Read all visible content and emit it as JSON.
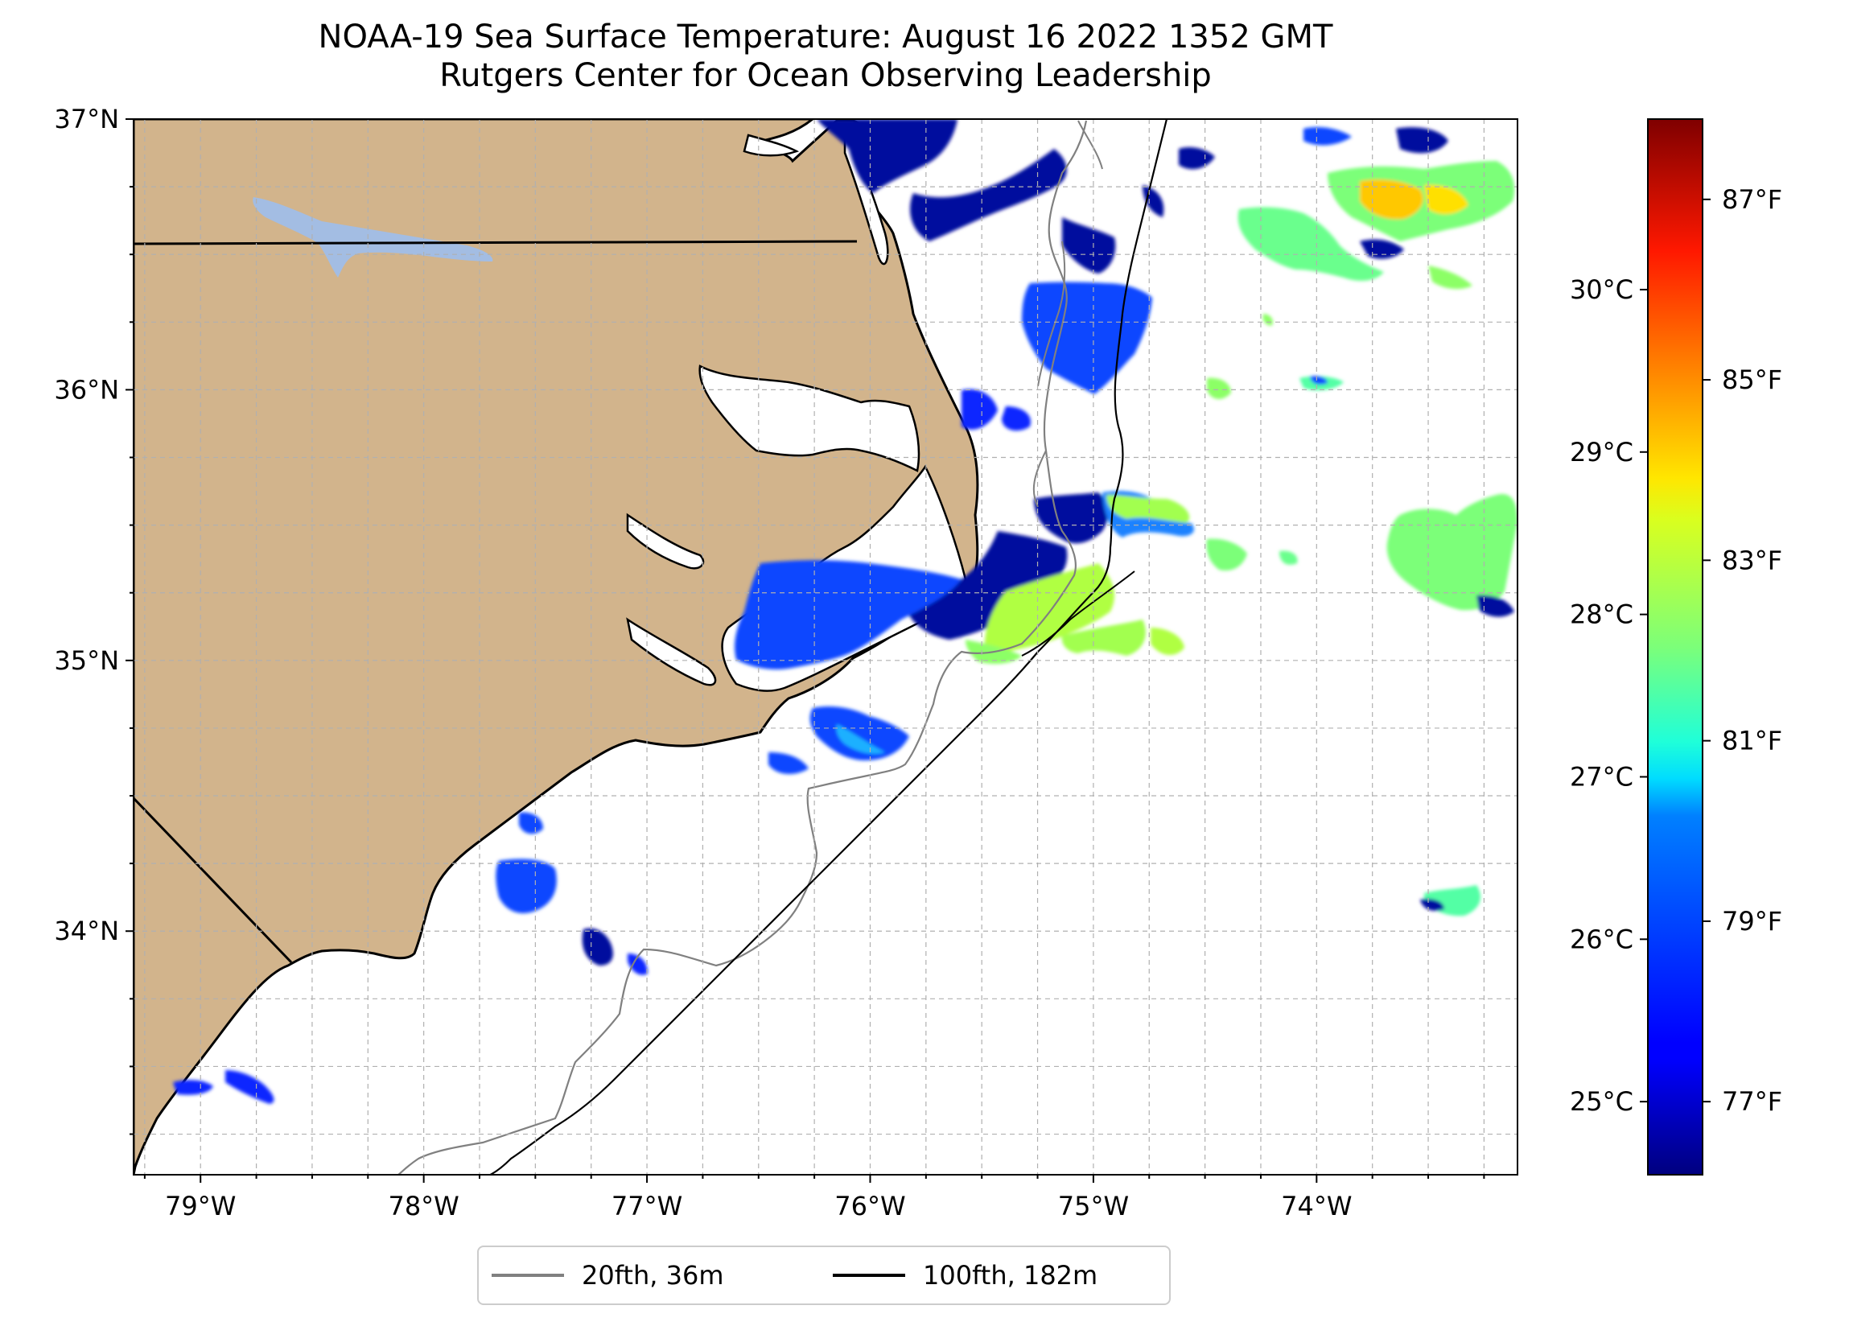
{
  "title": {
    "line1": "NOAA-19 Sea Surface Temperature: August 16 2022 1352 GMT",
    "line2": "Rutgers Center for Ocean Observing Leadership"
  },
  "map": {
    "lon_range": [
      -79.3,
      -73.1
    ],
    "lat_range": [
      33.1,
      37.0
    ],
    "lon_ticks": [
      {
        "value": -79,
        "label": "79°W"
      },
      {
        "value": -78,
        "label": "78°W"
      },
      {
        "value": -77,
        "label": "77°W"
      },
      {
        "value": -76,
        "label": "76°W"
      },
      {
        "value": -75,
        "label": "75°W"
      },
      {
        "value": -74,
        "label": "74°W"
      }
    ],
    "lat_ticks": [
      {
        "value": 37,
        "label": "37°N"
      },
      {
        "value": 36,
        "label": "36°N"
      },
      {
        "value": 35,
        "label": "35°N"
      },
      {
        "value": 34,
        "label": "34°N"
      }
    ],
    "grid": true,
    "colors": {
      "land": "#d2b48c",
      "ocean": "#ffffff",
      "lake": "#a3bde3",
      "grid": "#b0b0b0"
    }
  },
  "colorbar": {
    "colormap": "jet",
    "range_c": [
      24.55,
      31.05
    ],
    "celsius_ticks": [
      {
        "value": 25,
        "label": "25°C"
      },
      {
        "value": 26,
        "label": "26°C"
      },
      {
        "value": 27,
        "label": "27°C"
      },
      {
        "value": 28,
        "label": "28°C"
      },
      {
        "value": 29,
        "label": "29°C"
      },
      {
        "value": 30,
        "label": "30°C"
      }
    ],
    "fahrenheit_ticks": [
      {
        "value": 77,
        "label": "77°F"
      },
      {
        "value": 79,
        "label": "79°F"
      },
      {
        "value": 81,
        "label": "81°F"
      },
      {
        "value": 83,
        "label": "83°F"
      },
      {
        "value": 85,
        "label": "85°F"
      },
      {
        "value": 87,
        "label": "87°F"
      }
    ]
  },
  "legend": {
    "placement": "below",
    "items": [
      {
        "label": "20fth, 36m",
        "color": "#808080"
      },
      {
        "label": "100fth, 182m",
        "color": "#000000"
      }
    ]
  }
}
